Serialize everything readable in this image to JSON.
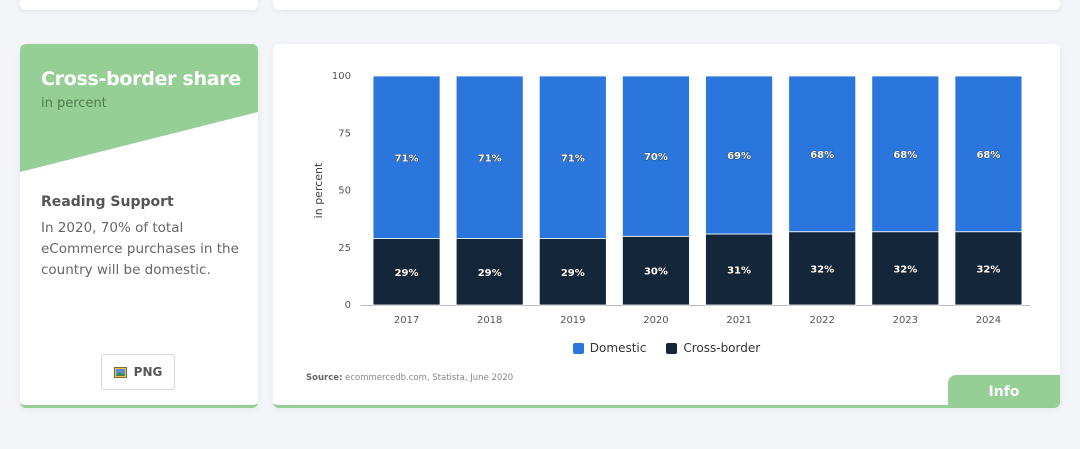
{
  "sidebar": {
    "title": "Cross-border share",
    "subtitle": "in percent",
    "reading_support_heading": "Reading Support",
    "reading_support_text": "In 2020, 70% of total eCommerce purchases in the country will be domestic.",
    "png_button_label": "PNG",
    "accent_color": "#96cf96"
  },
  "chart_card": {
    "source_label": "Source:",
    "source_text": "ecommercedb.com, Statista, June 2020",
    "info_tab_label": "Info"
  },
  "chart_data": {
    "type": "bar",
    "stacked": true,
    "categories": [
      "2017",
      "2018",
      "2019",
      "2020",
      "2021",
      "2022",
      "2023",
      "2024"
    ],
    "series": [
      {
        "name": "Cross-border",
        "values": [
          29,
          29,
          29,
          30,
          31,
          32,
          32,
          32
        ],
        "color": "#13263a",
        "labels": [
          "29%",
          "29%",
          "29%",
          "30%",
          "31%",
          "32%",
          "32%",
          "32%"
        ]
      },
      {
        "name": "Domestic",
        "values": [
          71,
          71,
          71,
          70,
          69,
          68,
          68,
          68
        ],
        "color": "#2a76dc",
        "labels": [
          "71%",
          "71%",
          "71%",
          "70%",
          "69%",
          "68%",
          "68%",
          "68%"
        ]
      }
    ],
    "legend_order": [
      "Domestic",
      "Cross-border"
    ],
    "ylabel": "in percent",
    "xlabel": "",
    "ylim": [
      0,
      100
    ],
    "yticks": [
      "0",
      "25",
      "50",
      "75",
      "100"
    ],
    "ytick_values": [
      0,
      25,
      50,
      75,
      100
    ],
    "legend_position": "bottom-center"
  }
}
